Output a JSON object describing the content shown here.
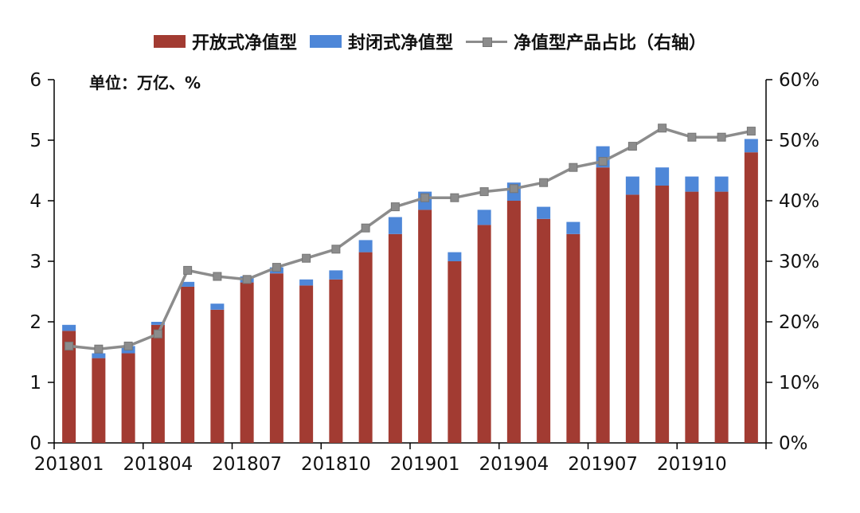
{
  "chart_data": {
    "type": "bar",
    "subtype": "stacked-bar-with-line-combo",
    "title": "",
    "unit_label": "单位：万亿、%",
    "categories": [
      "201801",
      "201802",
      "201803",
      "201804",
      "201805",
      "201806",
      "201807",
      "201808",
      "201809",
      "201810",
      "201811",
      "201812",
      "201901",
      "201902",
      "201903",
      "201904",
      "201905",
      "201906",
      "201907",
      "201908",
      "201909",
      "201910",
      "201911",
      "201912"
    ],
    "x_tick_labels": [
      "201801",
      "201804",
      "201807",
      "201810",
      "201901",
      "201904",
      "201907",
      "201910"
    ],
    "series": [
      {
        "name": "开放式净值型",
        "type": "bar",
        "axis": "left",
        "color": "#a23b32",
        "values": [
          1.85,
          1.4,
          1.48,
          1.95,
          2.58,
          2.2,
          2.65,
          2.8,
          2.6,
          2.7,
          3.15,
          3.45,
          3.85,
          3.0,
          3.6,
          4.0,
          3.7,
          3.45,
          4.55,
          4.1,
          4.25,
          4.15,
          4.15,
          4.8
        ]
      },
      {
        "name": "封闭式净值型",
        "type": "bar",
        "axis": "left",
        "color": "#4e87d8",
        "values": [
          0.1,
          0.08,
          0.12,
          0.05,
          0.08,
          0.1,
          0.1,
          0.1,
          0.1,
          0.15,
          0.2,
          0.28,
          0.3,
          0.15,
          0.25,
          0.3,
          0.2,
          0.2,
          0.35,
          0.3,
          0.3,
          0.25,
          0.25,
          0.22
        ]
      },
      {
        "name": "净值型产品占比（右轴）",
        "type": "line",
        "axis": "right",
        "color": "#8c8c8c",
        "values": [
          16,
          15.5,
          16,
          18,
          28.5,
          27.5,
          27,
          29,
          30.5,
          32,
          35.5,
          39,
          40.5,
          40.5,
          41.5,
          42,
          43,
          45.5,
          46.5,
          49,
          52,
          50.5,
          50.5,
          51.5
        ]
      }
    ],
    "left_axis": {
      "min": 0,
      "max": 6,
      "ticks": [
        0,
        1,
        2,
        3,
        4,
        5,
        6
      ]
    },
    "right_axis": {
      "min": 0,
      "max": 60,
      "ticks": [
        0,
        10,
        20,
        30,
        40,
        50,
        60
      ],
      "tick_labels": [
        "0%",
        "10%",
        "20%",
        "30%",
        "40%",
        "50%",
        "60%"
      ]
    },
    "legend_position": "top",
    "grid": false
  }
}
